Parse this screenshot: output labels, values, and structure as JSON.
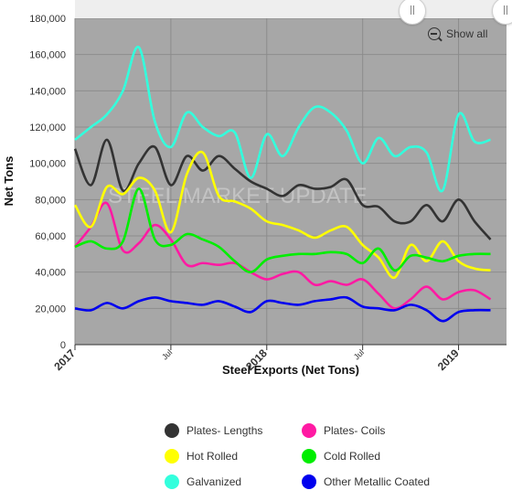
{
  "controls": {
    "show_all_label": "Show all"
  },
  "chart_data": {
    "type": "line",
    "xlabel": "Steel Exports (Net Tons)",
    "ylabel": "Net Tons",
    "ylim": [
      0,
      180000
    ],
    "yticks": [
      "0",
      "20,000",
      "40,000",
      "60,000",
      "80,000",
      "100,000",
      "120,000",
      "140,000",
      "160,000",
      "180,000"
    ],
    "xrange": [
      "2017-01",
      "2019-04"
    ],
    "xticks": [
      {
        "label": "2017",
        "x": "2017-01",
        "bold": true
      },
      {
        "label": "Jul",
        "x": "2017-07",
        "bold": false
      },
      {
        "label": "2018",
        "x": "2018-01",
        "bold": true
      },
      {
        "label": "Jul",
        "x": "2018-07",
        "bold": false
      },
      {
        "label": "2019",
        "x": "2019-01",
        "bold": true
      }
    ],
    "watermark": "STEEL MARKET UPDATE",
    "plot_background": "#a7a7a7",
    "grid": true,
    "legend_position": "bottom",
    "x": [
      "2017-01",
      "2017-02",
      "2017-03",
      "2017-04",
      "2017-05",
      "2017-06",
      "2017-07",
      "2017-08",
      "2017-09",
      "2017-10",
      "2017-11",
      "2017-12",
      "2018-01",
      "2018-02",
      "2018-03",
      "2018-04",
      "2018-05",
      "2018-06",
      "2018-07",
      "2018-08",
      "2018-09",
      "2018-10",
      "2018-11",
      "2018-12",
      "2019-01",
      "2019-02",
      "2019-03"
    ],
    "series": [
      {
        "name": "Plates- Lengths",
        "color": "#333333",
        "values": [
          108000,
          88000,
          113000,
          85000,
          100000,
          109000,
          88000,
          104000,
          96000,
          104000,
          97000,
          90000,
          86000,
          82000,
          88000,
          86000,
          87000,
          91000,
          77000,
          76000,
          68000,
          68000,
          77000,
          68000,
          80000,
          68000,
          58000
        ]
      },
      {
        "name": "Plates- Coils",
        "color": "#ff1aa3",
        "values": [
          54000,
          65000,
          78000,
          52000,
          56000,
          66000,
          58000,
          44000,
          45000,
          44000,
          45000,
          40000,
          36000,
          39000,
          40000,
          33000,
          35000,
          33000,
          36000,
          28000,
          20000,
          25000,
          32000,
          25000,
          29000,
          30000,
          25000
        ]
      },
      {
        "name": "Hot Rolled",
        "color": "#ffff00",
        "values": [
          77000,
          65000,
          87000,
          83000,
          92000,
          85000,
          62000,
          94000,
          106000,
          82000,
          79000,
          75000,
          68000,
          66000,
          63000,
          59000,
          63000,
          65000,
          55000,
          48000,
          37000,
          55000,
          46000,
          57000,
          46000,
          42000,
          41000
        ]
      },
      {
        "name": "Cold Rolled",
        "color": "#00ee00",
        "values": [
          54000,
          57000,
          53000,
          57000,
          86000,
          58000,
          55000,
          61000,
          58000,
          54000,
          46000,
          40000,
          47000,
          49000,
          50000,
          50000,
          51000,
          50000,
          45000,
          53000,
          41000,
          49000,
          48000,
          46000,
          49000,
          50000,
          50000
        ]
      },
      {
        "name": "Galvanized",
        "color": "#33ffdd",
        "values": [
          113000,
          120000,
          127000,
          140000,
          164000,
          123000,
          109000,
          128000,
          120000,
          115000,
          117000,
          92000,
          116000,
          104000,
          120000,
          131000,
          128000,
          118000,
          100000,
          114000,
          104000,
          109000,
          106000,
          85000,
          127000,
          112000,
          113000
        ]
      },
      {
        "name": "Other Metallic Coated",
        "color": "#0000ee",
        "values": [
          20000,
          19000,
          23000,
          20000,
          24000,
          26000,
          24000,
          23000,
          22000,
          24000,
          21000,
          18000,
          24000,
          23000,
          22000,
          24000,
          25000,
          26000,
          21000,
          20000,
          19000,
          22000,
          19000,
          13000,
          18000,
          19000,
          19000
        ]
      }
    ]
  }
}
